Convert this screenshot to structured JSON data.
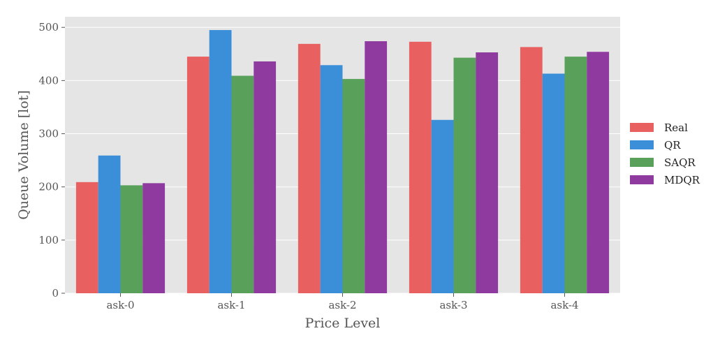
{
  "chart_data": {
    "type": "bar",
    "categories": [
      "ask-0",
      "ask-1",
      "ask-2",
      "ask-3",
      "ask-4"
    ],
    "series": [
      {
        "name": "Real",
        "color": "#e8605f",
        "values": [
          209,
          445,
          469,
          473,
          463
        ]
      },
      {
        "name": "QR",
        "color": "#3b8fd9",
        "values": [
          259,
          495,
          429,
          326,
          413
        ]
      },
      {
        "name": "SAQR",
        "color": "#59a15b",
        "values": [
          203,
          409,
          403,
          443,
          445
        ]
      },
      {
        "name": "MDQR",
        "color": "#8e3a9e",
        "values": [
          207,
          436,
          474,
          453,
          454
        ]
      }
    ],
    "xlabel": "Price Level",
    "ylabel": "Queue Volume [lot]",
    "ylim": [
      0,
      520
    ],
    "yticks": [
      0,
      100,
      200,
      300,
      400,
      500
    ],
    "grid": true,
    "legend_position": "right",
    "plot_background": "#e5e5e5"
  }
}
